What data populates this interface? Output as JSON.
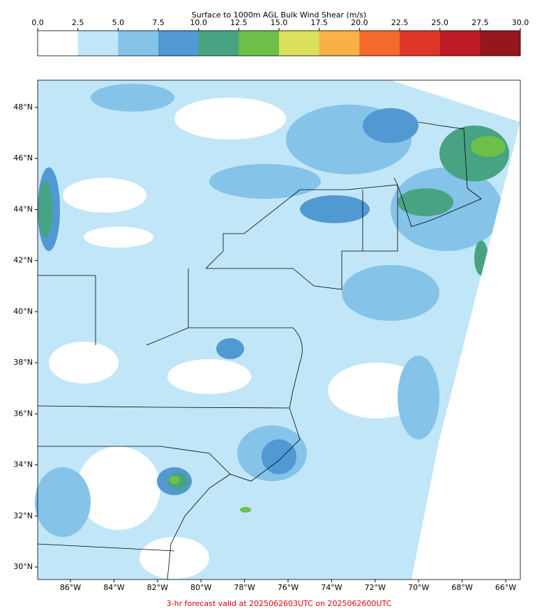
{
  "colorbar": {
    "title": "Surface to 1000m AGL Bulk Wind Shear (m/s)",
    "ticks": [
      {
        "value": 0,
        "label": "0.0"
      },
      2.5,
      {
        "value": 5,
        "label": "5.0"
      },
      7.5,
      {
        "value": 10,
        "label": "10.0"
      },
      12.5,
      {
        "value": 15,
        "label": "15.0"
      },
      17.5,
      {
        "value": 20,
        "label": "20.0"
      },
      22.5,
      {
        "value": 25,
        "label": "25.0"
      },
      27.5,
      {
        "value": 30,
        "label": "30.0"
      }
    ],
    "colors": [
      "#ffffff",
      "#c1e6f7",
      "#85c3e9",
      "#5199d2",
      "#48a383",
      "#6cc04a",
      "#dbe05a",
      "#f9b146",
      "#f56a2b",
      "#e0362a",
      "#be1b27",
      "#93171b"
    ]
  },
  "map": {
    "lat_ticks": [
      {
        "value": 48,
        "label": "48°N"
      },
      {
        "value": 46,
        "label": "46°N"
      },
      {
        "value": 44,
        "label": "44°N"
      },
      {
        "value": 42,
        "label": "42°N"
      },
      {
        "value": 40,
        "label": "40°N"
      },
      {
        "value": 38,
        "label": "38°N"
      },
      {
        "value": 36,
        "label": "36°N"
      },
      {
        "value": 34,
        "label": "34°N"
      },
      {
        "value": 32,
        "label": "32°N"
      },
      {
        "value": 30,
        "label": "30°N"
      }
    ],
    "lon_ticks": [
      {
        "value": -86,
        "label": "86°W"
      },
      {
        "value": -84,
        "label": "84°W"
      },
      {
        "value": -82,
        "label": "82°W"
      },
      {
        "value": -80,
        "label": "80°W"
      },
      {
        "value": -78,
        "label": "78°W"
      },
      {
        "value": -76,
        "label": "76°W"
      },
      {
        "value": -74,
        "label": "74°W"
      },
      {
        "value": -72,
        "label": "72°W"
      },
      {
        "value": -70,
        "label": "70°W"
      },
      {
        "value": -68,
        "label": "68°W"
      },
      {
        "value": -66,
        "label": "66°W"
      }
    ]
  },
  "footer": "3-hr forecast valid at 2025062603UTC on 2025062600UTC"
}
